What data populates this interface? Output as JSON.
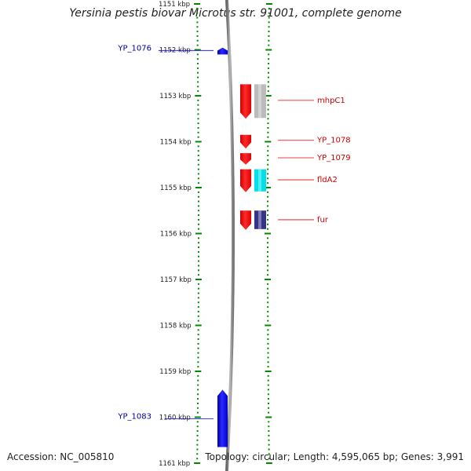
{
  "title": "Yersinia pestis biovar Microtus str. 91001, complete genome",
  "footer": {
    "accession": "Accession: NC_005810",
    "summary": "Topology: circular; Length: 4,595,065 bp; Genes: 3,991"
  },
  "colors": {
    "forward_cds": "#0000ee",
    "reverse_cds": "#ee0000",
    "tick": "#008800",
    "backbone": "#888888",
    "forward_label": "#000099",
    "reverse_label": "#cc0000"
  },
  "axis": {
    "unit": "kbp",
    "range_kbp": [
      1151,
      1161
    ],
    "ticks": [
      {
        "kbp": 1151,
        "label": "1151 kbp"
      },
      {
        "kbp": 1152,
        "label": "1152 kbp"
      },
      {
        "kbp": 1153,
        "label": "1153 kbp"
      },
      {
        "kbp": 1154,
        "label": "1154 kbp"
      },
      {
        "kbp": 1155,
        "label": "1155 kbp"
      },
      {
        "kbp": 1156,
        "label": "1156 kbp"
      },
      {
        "kbp": 1157,
        "label": "1157 kbp"
      },
      {
        "kbp": 1158,
        "label": "1158 kbp"
      },
      {
        "kbp": 1159,
        "label": "1159 kbp"
      },
      {
        "kbp": 1160,
        "label": "1160 kbp"
      },
      {
        "kbp": 1161,
        "label": "1161 kbp"
      }
    ]
  },
  "features": [
    {
      "label": "YP_1076",
      "strand": "+",
      "start_kbp": 1151.95,
      "end_kbp": 1152.1,
      "label_at_kbp": 1151.98
    },
    {
      "label": "mhpC1",
      "strand": "-",
      "start_kbp": 1152.75,
      "end_kbp": 1153.5,
      "cog_color": "#bbbbbb",
      "label_at_kbp": 1153.1
    },
    {
      "label": "YP_1078",
      "strand": "-",
      "start_kbp": 1153.85,
      "end_kbp": 1154.15,
      "label_at_kbp": 1153.97
    },
    {
      "label": "YP_1079",
      "strand": "-",
      "start_kbp": 1154.25,
      "end_kbp": 1154.5,
      "label_at_kbp": 1154.35
    },
    {
      "label": "fldA2",
      "strand": "-",
      "start_kbp": 1154.6,
      "end_kbp": 1155.1,
      "cog_color": "#00e0e8",
      "label_at_kbp": 1154.83
    },
    {
      "label": "fur",
      "strand": "-",
      "start_kbp": 1155.5,
      "end_kbp": 1155.92,
      "cog_color": "#333388",
      "label_at_kbp": 1155.7
    },
    {
      "label": "YP_1083",
      "strand": "+",
      "start_kbp": 1159.4,
      "end_kbp": 1160.65,
      "label_at_kbp": 1160.0
    }
  ]
}
